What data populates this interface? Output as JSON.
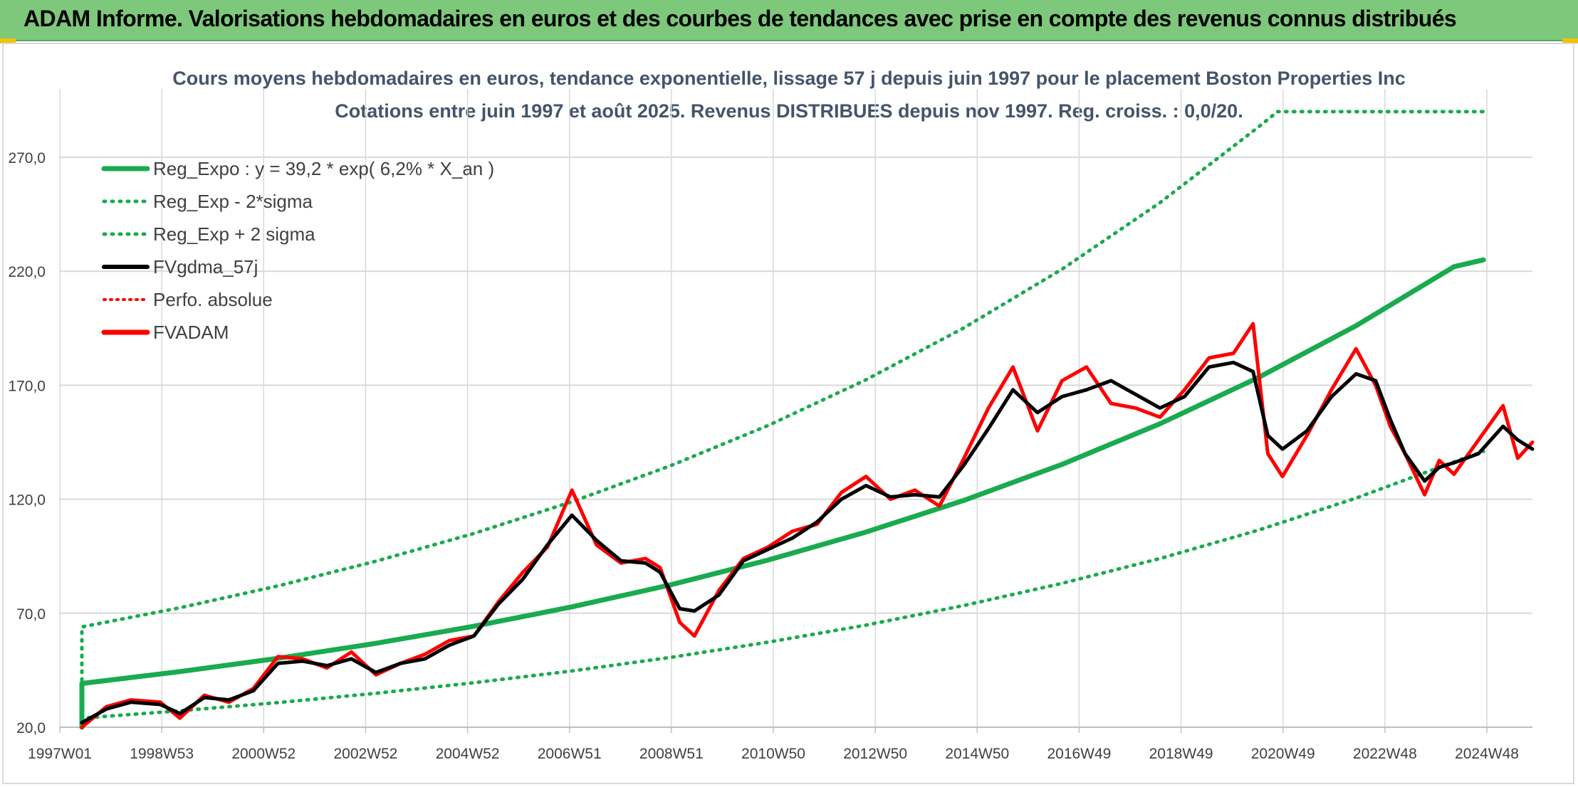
{
  "header": {
    "title": "ADAM Informe. Valorisations hebdomadaires en euros et des courbes de tendances avec prise en compte des revenus connus distribués"
  },
  "colors": {
    "header_bg": "#7dc87a",
    "trend_green": "#1aaa4f",
    "price_red": "#ff0000",
    "smooth_black": "#000000",
    "grid": "#d9d9d9"
  },
  "chart_data": {
    "type": "line",
    "title": "Cours moyens hebdomadaires en euros, tendance exponentielle, lissage 57 j depuis juin 1997 pour le placement Boston Properties Inc",
    "subtitle": "Cotations entre juin 1997 et août 2025. Revenus DISTRIBUES depuis nov 1997. Reg. croiss. : 0,0/20.",
    "ylim": [
      20,
      290
    ],
    "yticks": [
      "20,0",
      "70,0",
      "120,0",
      "170,0",
      "220,0",
      "270,0"
    ],
    "xticks": [
      "1997W01",
      "1998W53",
      "2000W52",
      "2002W52",
      "2004W52",
      "2006W51",
      "2008W51",
      "2010W50",
      "2012W50",
      "2014W50",
      "2016W49",
      "2018W49",
      "2020W49",
      "2022W48",
      "2024W48"
    ],
    "xlim": [
      "1997W01",
      "2025W35"
    ],
    "grid": true,
    "legend_position": "top-left",
    "legend": [
      {
        "label": "Reg_Expo : y = 39,2 * exp( 6,2% *  X_an )",
        "style": "solid",
        "color": "#1aaa4f"
      },
      {
        "label": "Reg_Exp - 2*sigma",
        "style": "dotted",
        "color": "#1aaa4f"
      },
      {
        "label": "Reg_Exp + 2 sigma",
        "style": "dotted",
        "color": "#1aaa4f"
      },
      {
        "label": "FVgdma_57j",
        "style": "solid",
        "color": "#000000"
      },
      {
        "label": "Perfo. absolue",
        "style": "dotted",
        "color": "#ff0000"
      },
      {
        "label": "FVADAM",
        "style": "solid",
        "color": "#ff0000"
      }
    ],
    "series": [
      {
        "name": "Reg_Expo : y = 39,2 * exp( 6,2% *  X_an )",
        "points": [
          [
            1997.0,
            39.2
          ],
          [
            1999.0,
            44.4
          ],
          [
            2001.0,
            50.2
          ],
          [
            2003.0,
            56.8
          ],
          [
            2005.0,
            64.3
          ],
          [
            2007.0,
            72.8
          ],
          [
            2009.0,
            82.4
          ],
          [
            2011.0,
            93.3
          ],
          [
            2013.0,
            105.6
          ],
          [
            2015.0,
            119.5
          ],
          [
            2017.0,
            135.3
          ],
          [
            2019.0,
            153.1
          ],
          [
            2021.0,
            173.3
          ],
          [
            2023.0,
            196.1
          ],
          [
            2025.0,
            222.0
          ],
          [
            2025.6,
            225.0
          ]
        ]
      },
      {
        "name": "Reg_Exp - 2*sigma",
        "points": [
          [
            1997.0,
            24.0
          ],
          [
            1999.0,
            27.2
          ],
          [
            2001.0,
            30.8
          ],
          [
            2003.0,
            34.9
          ],
          [
            2005.0,
            39.5
          ],
          [
            2007.0,
            44.7
          ],
          [
            2009.0,
            50.6
          ],
          [
            2011.0,
            57.3
          ],
          [
            2013.0,
            64.8
          ],
          [
            2015.0,
            73.4
          ],
          [
            2017.0,
            83.1
          ],
          [
            2019.0,
            94.0
          ],
          [
            2021.0,
            106.4
          ],
          [
            2023.0,
            120.5
          ],
          [
            2025.0,
            136.4
          ],
          [
            2025.6,
            141.0
          ]
        ]
      },
      {
        "name": "Reg_Exp + 2 sigma",
        "points": [
          [
            1997.0,
            64.0
          ],
          [
            1999.0,
            72.4
          ],
          [
            2001.0,
            82.0
          ],
          [
            2003.0,
            92.8
          ],
          [
            2005.0,
            105.0
          ],
          [
            2007.0,
            118.9
          ],
          [
            2009.0,
            134.6
          ],
          [
            2011.0,
            152.3
          ],
          [
            2013.0,
            172.4
          ],
          [
            2015.0,
            195.2
          ],
          [
            2017.0,
            220.9
          ],
          [
            2019.0,
            250.1
          ],
          [
            2021.0,
            283.1
          ],
          [
            2021.4,
            290.0
          ],
          [
            2025.6,
            290.0
          ]
        ]
      },
      {
        "name": "FVgdma_57j",
        "points": [
          [
            1997.0,
            22
          ],
          [
            1997.5,
            28
          ],
          [
            1998.0,
            31
          ],
          [
            1998.6,
            30
          ],
          [
            1999.0,
            26
          ],
          [
            1999.5,
            33
          ],
          [
            2000.0,
            32
          ],
          [
            2000.5,
            36
          ],
          [
            2001.0,
            48
          ],
          [
            2001.5,
            49
          ],
          [
            2002.0,
            47
          ],
          [
            2002.5,
            50
          ],
          [
            2003.0,
            44
          ],
          [
            2003.5,
            48
          ],
          [
            2004.0,
            50
          ],
          [
            2004.5,
            56
          ],
          [
            2005.0,
            60
          ],
          [
            2005.5,
            74
          ],
          [
            2006.0,
            85
          ],
          [
            2006.5,
            100
          ],
          [
            2007.0,
            113
          ],
          [
            2007.5,
            102
          ],
          [
            2008.0,
            93
          ],
          [
            2008.5,
            92
          ],
          [
            2008.8,
            88
          ],
          [
            2009.2,
            72
          ],
          [
            2009.5,
            71
          ],
          [
            2010.0,
            78
          ],
          [
            2010.5,
            93
          ],
          [
            2011.0,
            98
          ],
          [
            2011.5,
            103
          ],
          [
            2012.0,
            110
          ],
          [
            2012.5,
            120
          ],
          [
            2013.0,
            126
          ],
          [
            2013.5,
            121
          ],
          [
            2014.0,
            122
          ],
          [
            2014.5,
            121
          ],
          [
            2015.0,
            135
          ],
          [
            2015.5,
            151
          ],
          [
            2016.0,
            168
          ],
          [
            2016.5,
            158
          ],
          [
            2017.0,
            165
          ],
          [
            2017.5,
            168
          ],
          [
            2018.0,
            172
          ],
          [
            2018.5,
            166
          ],
          [
            2019.0,
            160
          ],
          [
            2019.5,
            165
          ],
          [
            2020.0,
            178
          ],
          [
            2020.5,
            180
          ],
          [
            2020.9,
            176
          ],
          [
            2021.2,
            148
          ],
          [
            2021.5,
            142
          ],
          [
            2022.0,
            150
          ],
          [
            2022.5,
            165
          ],
          [
            2023.0,
            175
          ],
          [
            2023.4,
            172
          ],
          [
            2023.7,
            155
          ],
          [
            2024.0,
            140
          ],
          [
            2024.4,
            128
          ],
          [
            2024.7,
            134
          ],
          [
            2025.0,
            136
          ],
          [
            2025.5,
            140
          ],
          [
            2026.0,
            152
          ],
          [
            2026.3,
            146
          ],
          [
            2026.6,
            142
          ]
        ]
      },
      {
        "name": "FVADAM",
        "points": [
          [
            1997.0,
            20
          ],
          [
            1997.5,
            29
          ],
          [
            1998.0,
            32
          ],
          [
            1998.6,
            31
          ],
          [
            1999.0,
            24
          ],
          [
            1999.5,
            34
          ],
          [
            2000.0,
            31
          ],
          [
            2000.5,
            37
          ],
          [
            2001.0,
            51
          ],
          [
            2001.5,
            50
          ],
          [
            2002.0,
            46
          ],
          [
            2002.5,
            53
          ],
          [
            2003.0,
            43
          ],
          [
            2003.5,
            48
          ],
          [
            2004.0,
            52
          ],
          [
            2004.5,
            58
          ],
          [
            2005.0,
            60
          ],
          [
            2005.5,
            75
          ],
          [
            2006.0,
            88
          ],
          [
            2006.5,
            99
          ],
          [
            2007.0,
            124
          ],
          [
            2007.5,
            100
          ],
          [
            2008.0,
            92
          ],
          [
            2008.5,
            94
          ],
          [
            2008.8,
            90
          ],
          [
            2009.2,
            66
          ],
          [
            2009.5,
            60
          ],
          [
            2010.0,
            80
          ],
          [
            2010.5,
            94
          ],
          [
            2011.0,
            99
          ],
          [
            2011.5,
            106
          ],
          [
            2012.0,
            109
          ],
          [
            2012.5,
            123
          ],
          [
            2013.0,
            130
          ],
          [
            2013.5,
            120
          ],
          [
            2014.0,
            124
          ],
          [
            2014.5,
            117
          ],
          [
            2015.0,
            138
          ],
          [
            2015.5,
            160
          ],
          [
            2016.0,
            178
          ],
          [
            2016.5,
            150
          ],
          [
            2017.0,
            172
          ],
          [
            2017.5,
            178
          ],
          [
            2018.0,
            162
          ],
          [
            2018.5,
            160
          ],
          [
            2019.0,
            156
          ],
          [
            2019.5,
            168
          ],
          [
            2020.0,
            182
          ],
          [
            2020.5,
            184
          ],
          [
            2020.9,
            197
          ],
          [
            2021.2,
            140
          ],
          [
            2021.5,
            130
          ],
          [
            2022.0,
            148
          ],
          [
            2022.5,
            168
          ],
          [
            2023.0,
            186
          ],
          [
            2023.4,
            170
          ],
          [
            2023.7,
            152
          ],
          [
            2024.0,
            140
          ],
          [
            2024.4,
            122
          ],
          [
            2024.7,
            137
          ],
          [
            2025.0,
            131
          ],
          [
            2025.5,
            146
          ],
          [
            2026.0,
            161
          ],
          [
            2026.3,
            138
          ],
          [
            2026.6,
            145
          ]
        ]
      }
    ]
  }
}
